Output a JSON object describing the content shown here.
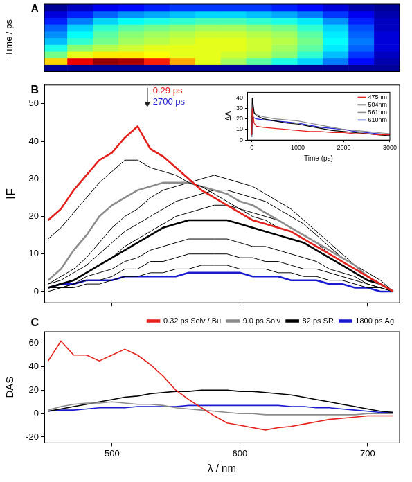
{
  "chart_data": [
    {
      "type": "heatmap",
      "panel": "A",
      "y_label": "Time / ps",
      "x": [
        455,
        475,
        495,
        515,
        535,
        555,
        575,
        595,
        615,
        635,
        655,
        675,
        695,
        715
      ],
      "y": [
        -1,
        0.3,
        1,
        3,
        10,
        30,
        100,
        300,
        1000,
        3000
      ],
      "cells": [
        [
          1,
          1,
          1,
          1,
          1,
          1,
          1,
          1,
          1,
          1,
          1,
          1,
          1,
          1
        ],
        [
          30,
          40,
          44,
          43,
          38,
          32,
          27,
          24,
          21,
          18,
          15,
          11,
          6,
          2
        ],
        [
          22,
          27,
          29,
          29,
          28,
          27,
          27,
          26,
          25,
          23,
          19,
          14,
          8,
          3
        ],
        [
          18,
          23,
          25,
          26,
          27,
          27,
          27,
          27,
          26,
          24,
          21,
          16,
          10,
          4
        ],
        [
          14,
          19,
          22,
          24,
          25,
          26,
          27,
          27,
          26,
          25,
          22,
          17,
          11,
          4
        ],
        [
          12,
          17,
          21,
          23,
          24,
          25,
          26,
          26,
          25,
          24,
          21,
          16,
          10,
          4
        ],
        [
          10,
          15,
          19,
          21,
          22,
          23,
          24,
          24,
          23,
          22,
          19,
          15,
          9,
          3
        ],
        [
          7,
          11,
          15,
          17,
          18,
          19,
          20,
          20,
          19,
          18,
          16,
          12,
          7,
          3
        ],
        [
          4,
          7,
          10,
          12,
          13,
          14,
          15,
          15,
          14,
          13,
          11,
          8,
          5,
          2
        ],
        [
          1,
          3,
          5,
          6,
          7,
          8,
          8,
          8,
          8,
          7,
          6,
          4,
          2,
          1
        ]
      ],
      "zlim": [
        0,
        45
      ],
      "xlim": [
        447,
        725
      ],
      "tick_labels": false,
      "grid": false
    },
    {
      "type": "line",
      "panel": "B",
      "y_label": "IF",
      "x": [
        450,
        460,
        470,
        480,
        490,
        500,
        510,
        520,
        530,
        540,
        550,
        560,
        570,
        580,
        590,
        600,
        610,
        620,
        630,
        640,
        650,
        660,
        670,
        680,
        690,
        700,
        710,
        720
      ],
      "xlim": [
        447,
        725
      ],
      "xticks": [
        500,
        600,
        700
      ],
      "ylim": [
        -3,
        55
      ],
      "yticks": [
        0,
        10,
        20,
        30,
        40,
        50
      ],
      "tick_labels": "y",
      "grid": false,
      "series": [
        {
          "name": "0.29 ps",
          "color": "#e3201b",
          "line_style": "thick",
          "values": [
            19,
            22,
            27,
            31,
            35,
            37,
            41,
            44,
            38,
            36,
            33,
            30,
            27,
            25,
            23,
            21,
            19,
            18,
            17,
            16,
            14,
            12,
            10,
            8,
            6,
            4,
            2,
            0
          ]
        },
        {
          "color": "#000000",
          "line_style": "thin",
          "values": [
            14,
            17,
            21,
            25,
            29,
            32,
            35,
            35,
            33,
            32,
            31,
            29,
            28,
            26,
            24,
            22,
            20,
            19,
            17,
            16,
            14,
            12,
            10,
            8,
            6,
            4,
            2,
            0
          ]
        },
        {
          "color": "#8c8c8c",
          "line_style": "thick",
          "values": [
            3,
            6,
            11,
            15,
            20,
            23,
            25,
            27,
            28,
            29,
            29,
            29,
            28,
            27,
            26,
            24,
            23,
            21,
            19,
            17,
            15,
            13,
            11,
            9,
            7,
            4,
            2,
            0
          ]
        },
        {
          "color": "#000000",
          "line_style": "thin",
          "values": [
            2,
            4,
            6,
            9,
            13,
            17,
            20,
            22,
            25,
            27,
            28,
            29,
            30,
            31,
            30,
            29,
            28,
            26,
            24,
            22,
            19,
            16,
            13,
            10,
            7,
            5,
            3,
            0
          ]
        },
        {
          "color": "#000000",
          "line_style": "thin",
          "values": [
            2,
            3,
            5,
            7,
            10,
            13,
            16,
            18,
            20,
            22,
            24,
            25,
            26,
            27,
            27,
            26,
            25,
            24,
            22,
            20,
            18,
            15,
            12,
            9,
            7,
            4,
            2,
            0
          ]
        },
        {
          "color": "#000000",
          "line_style": "thin",
          "values": [
            1,
            2,
            3,
            5,
            7,
            9,
            12,
            14,
            16,
            18,
            20,
            21,
            22,
            23,
            23,
            22,
            21,
            20,
            19,
            17,
            15,
            13,
            10,
            8,
            6,
            4,
            2,
            0
          ]
        },
        {
          "color": "#000000",
          "line_style": "thick",
          "values": [
            1,
            2,
            3,
            5,
            7,
            9,
            11,
            13,
            15,
            17,
            18,
            19,
            19,
            19,
            19,
            18,
            17,
            16,
            15,
            14,
            13,
            11,
            9,
            7,
            5,
            3,
            2,
            0
          ]
        },
        {
          "color": "#000000",
          "line_style": "thin",
          "values": [
            1,
            1,
            2,
            4,
            5,
            6,
            8,
            9,
            11,
            12,
            13,
            14,
            14,
            14,
            14,
            13,
            12,
            12,
            11,
            10,
            9,
            8,
            6,
            5,
            4,
            2,
            1,
            0
          ]
        },
        {
          "color": "#000000",
          "line_style": "thin",
          "values": [
            1,
            1,
            2,
            3,
            3,
            4,
            6,
            6,
            8,
            8,
            9,
            10,
            10,
            10,
            10,
            9,
            9,
            8,
            8,
            7,
            6,
            6,
            5,
            4,
            3,
            2,
            1,
            0
          ]
        },
        {
          "color": "#000000",
          "line_style": "thin",
          "values": [
            0,
            1,
            1,
            2,
            2,
            3,
            4,
            4,
            5,
            5,
            6,
            6,
            7,
            7,
            7,
            6,
            6,
            6,
            5,
            5,
            4,
            4,
            3,
            3,
            2,
            1,
            1,
            0
          ]
        },
        {
          "name": "2700 ps",
          "color": "#1a1ad0",
          "line_style": "thick",
          "values": [
            1,
            2,
            2,
            3,
            3,
            3,
            4,
            4,
            4,
            4,
            4,
            5,
            5,
            5,
            5,
            5,
            4,
            4,
            4,
            3,
            3,
            3,
            2,
            2,
            1,
            1,
            0,
            0
          ]
        }
      ],
      "inset": {
        "type": "line",
        "x_label": "Time (ps)",
        "y_label": "ΔA",
        "x": [
          0,
          10,
          50,
          100,
          250,
          500,
          750,
          1000,
          1250,
          1500,
          1750,
          2000,
          2250,
          2500,
          2750,
          3000
        ],
        "xlim": [
          -100,
          3000
        ],
        "xticks": [
          0,
          1000,
          2000,
          3000
        ],
        "ylim": [
          0,
          45
        ],
        "yticks": [
          0,
          10,
          20,
          30,
          40
        ],
        "legend": "top right",
        "grid": false,
        "series": [
          {
            "name": "475nm",
            "color": "#e3201b",
            "values": [
              5,
              30,
              16,
              13,
              12,
              11,
              10,
              9,
              8,
              8,
              7,
              7,
              6,
              6,
              5,
              5
            ]
          },
          {
            "name": "504nm",
            "color": "#000000",
            "values": [
              5,
              40,
              26,
              23,
              20,
              18,
              16,
              15,
              13,
              11,
              9,
              8,
              7,
              6,
              5,
              4
            ]
          },
          {
            "name": "561nm",
            "color": "#8c8c8c",
            "values": [
              3,
              28,
              25,
              24,
              22,
              20,
              19,
              18,
              16,
              14,
              12,
              10,
              9,
              8,
              7,
              6
            ]
          },
          {
            "name": "610nm",
            "color": "#1a1ad0",
            "values": [
              3,
              22,
              21,
              20,
              19,
              18,
              17,
              16,
              14,
              12,
              11,
              10,
              8,
              7,
              6,
              5
            ]
          }
        ]
      }
    },
    {
      "type": "line",
      "panel": "C",
      "x_label": "λ / nm",
      "y_label": "DAS",
      "x": [
        450,
        460,
        470,
        480,
        490,
        500,
        510,
        520,
        530,
        540,
        550,
        560,
        570,
        580,
        590,
        600,
        610,
        620,
        630,
        640,
        650,
        660,
        670,
        680,
        690,
        700,
        710,
        720
      ],
      "xlim": [
        447,
        725
      ],
      "xticks": [
        500,
        600,
        700
      ],
      "ylim": [
        -25,
        70
      ],
      "yticks": [
        -20,
        0,
        20,
        40,
        60
      ],
      "legend": "top",
      "grid": false,
      "series": [
        {
          "name": "0.32 ps Solv / Bu",
          "color": "#e3201b",
          "values": [
            45,
            62,
            50,
            50,
            45,
            50,
            55,
            50,
            42,
            32,
            20,
            12,
            5,
            -2,
            -8,
            -10,
            -12,
            -14,
            -12,
            -11,
            -9,
            -7,
            -5,
            -4,
            -3,
            -2,
            -2,
            -2
          ]
        },
        {
          "name": "9.0 ps Solv",
          "color": "#8c8c8c",
          "values": [
            3,
            6,
            8,
            9,
            9,
            10,
            9,
            8,
            8,
            7,
            5,
            4,
            3,
            2,
            1,
            0,
            0,
            -1,
            -1,
            -1,
            -1,
            -1,
            -1,
            -1,
            -1,
            0,
            0,
            0
          ]
        },
        {
          "name": "82 ps SR",
          "color": "#000000",
          "values": [
            2,
            4,
            6,
            8,
            10,
            12,
            14,
            15,
            17,
            18,
            19,
            19,
            20,
            20,
            20,
            19,
            19,
            18,
            17,
            16,
            14,
            12,
            10,
            8,
            6,
            4,
            2,
            1
          ]
        },
        {
          "name": "1800 ps Ag",
          "color": "#1a1ad0",
          "values": [
            2,
            3,
            3,
            4,
            5,
            5,
            5,
            6,
            6,
            6,
            6,
            7,
            7,
            7,
            7,
            7,
            7,
            7,
            7,
            6,
            6,
            5,
            5,
            4,
            3,
            2,
            1,
            1
          ]
        }
      ]
    }
  ]
}
